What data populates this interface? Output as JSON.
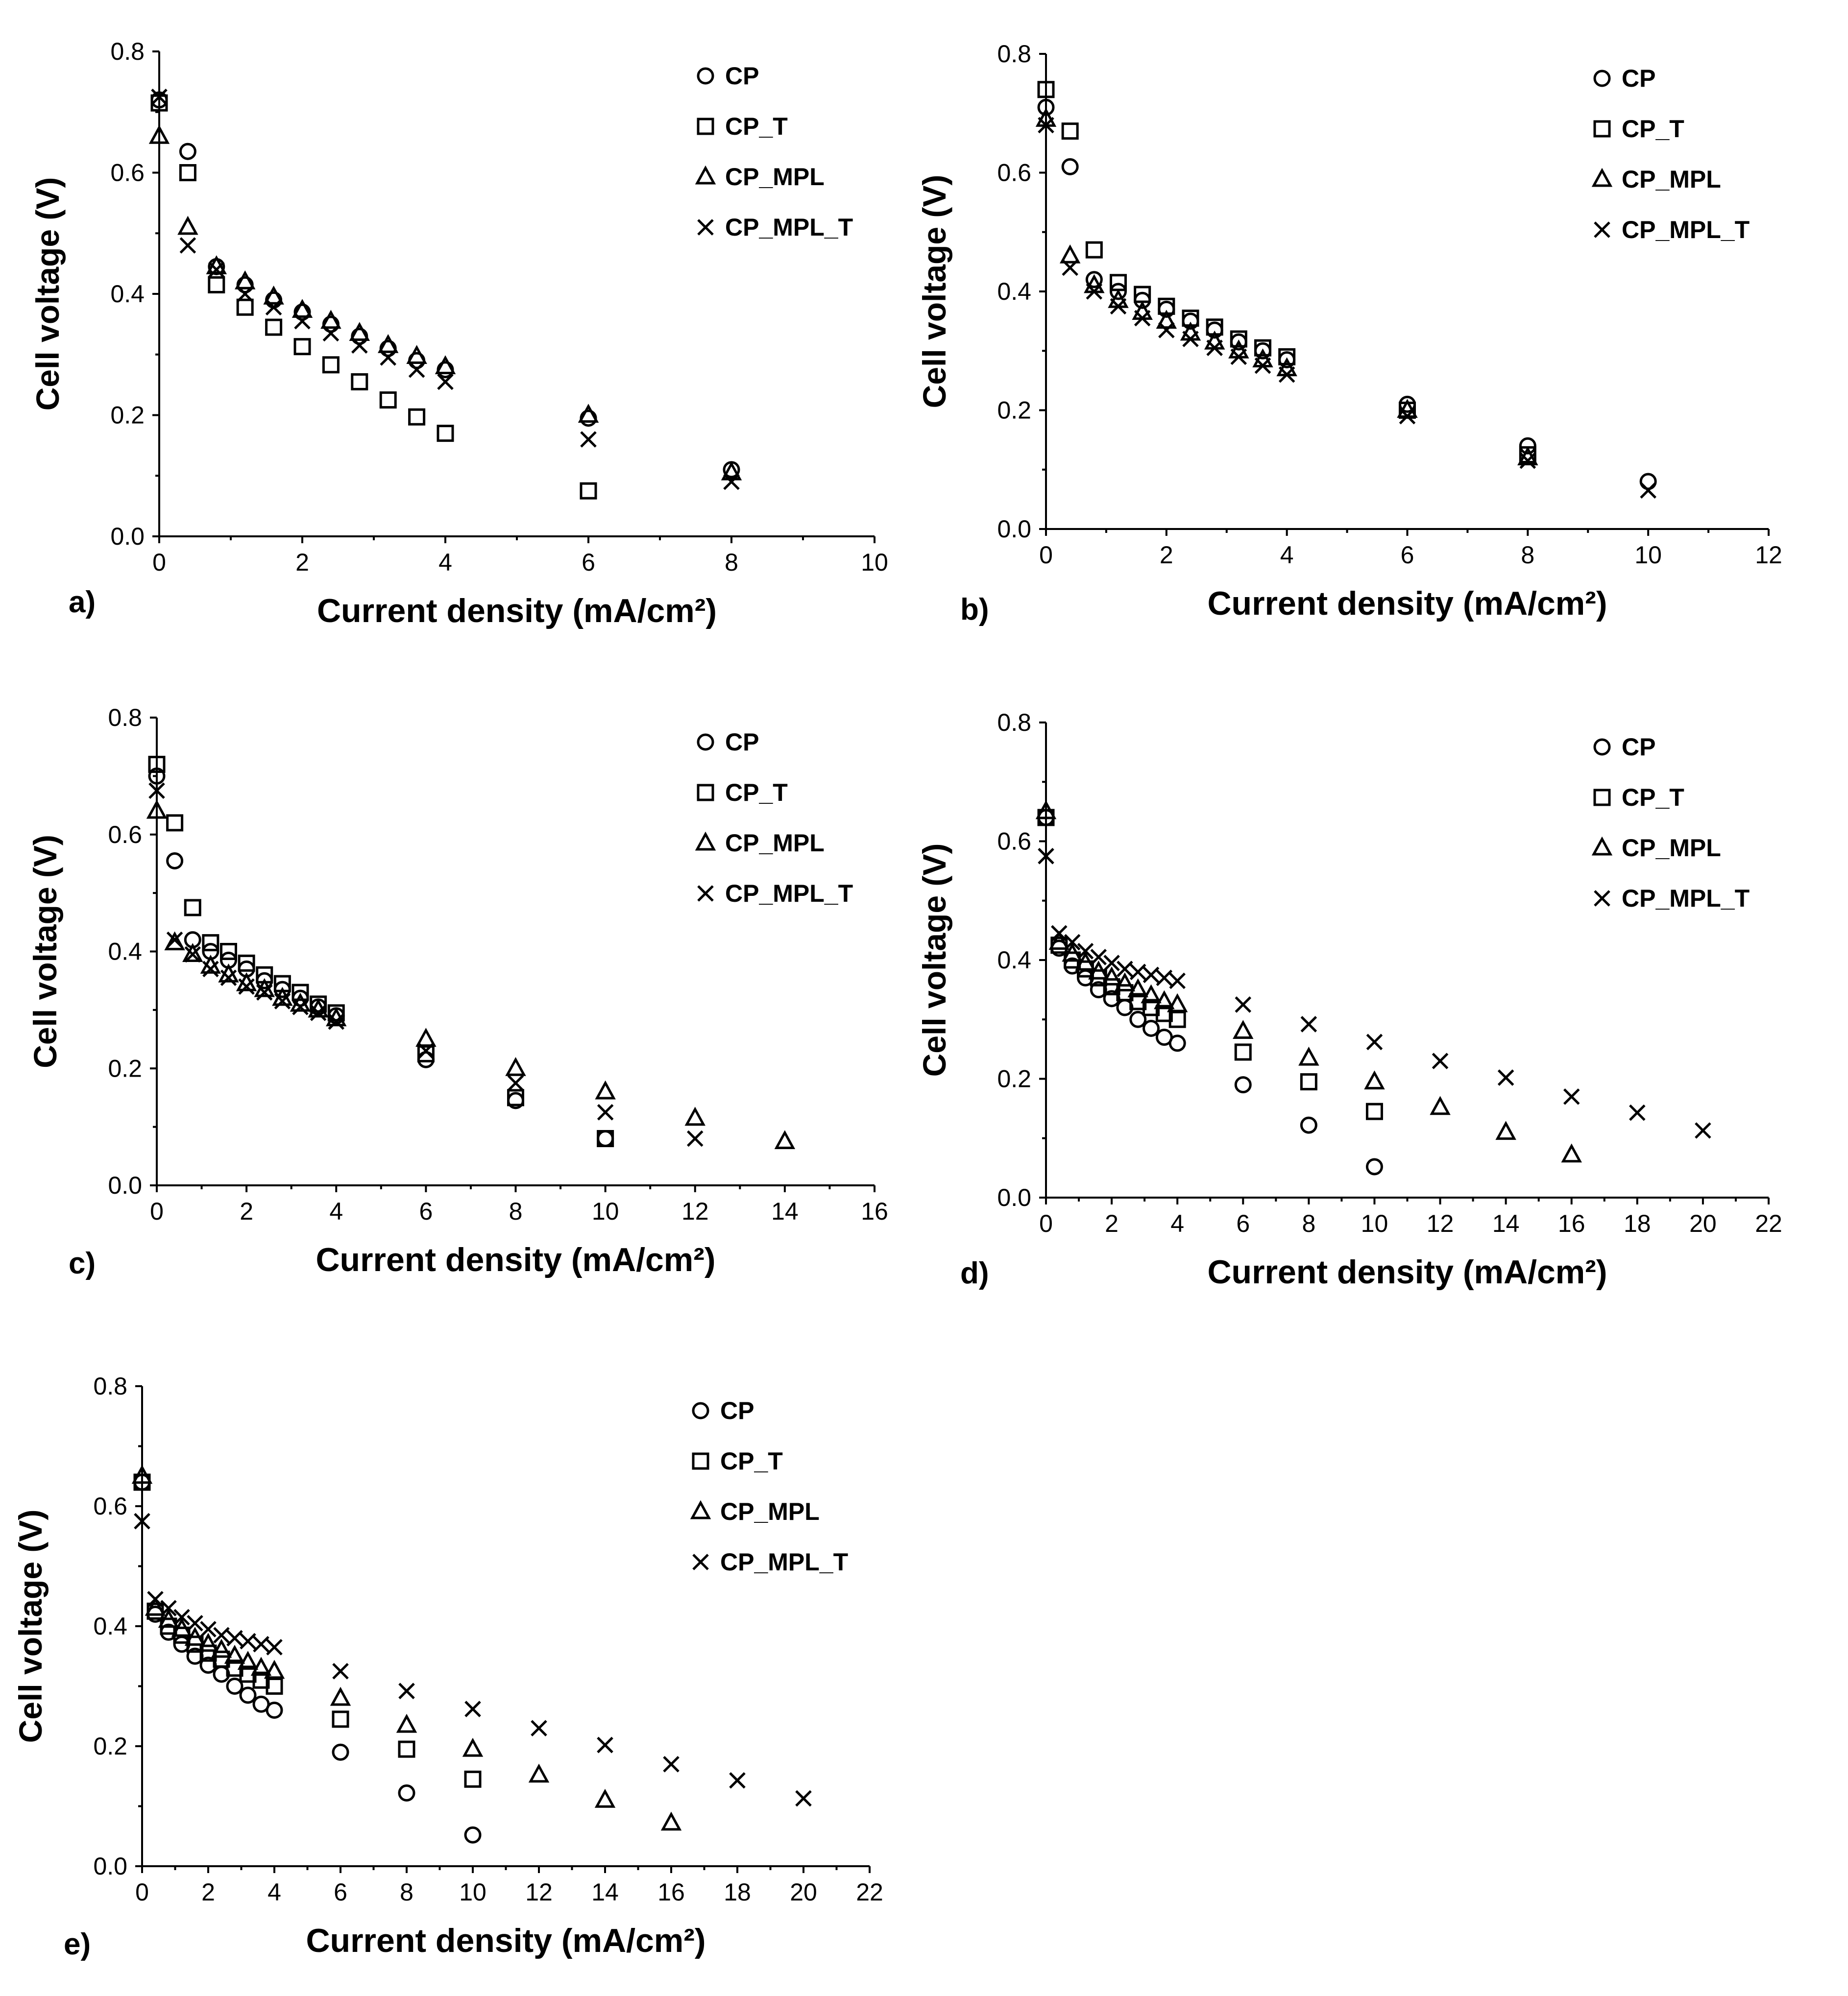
{
  "chart_data": [
    {
      "type": "scatter",
      "panel_label": "a)",
      "xlabel": "Current density (mA/cm²)",
      "ylabel": "Cell voltage (V)",
      "xlim": [
        0,
        10
      ],
      "xticks": [
        0,
        2,
        4,
        6,
        8,
        10
      ],
      "ylim": [
        0,
        0.8
      ],
      "yticks": [
        "0.0",
        "0.2",
        "0.4",
        "0.6",
        "0.8"
      ],
      "legend_position": "top-right",
      "series": [
        {
          "name": "CP",
          "marker": "circle",
          "x": [
            0,
            0.4,
            0.8,
            1.2,
            1.6,
            2.0,
            2.4,
            2.8,
            3.2,
            3.6,
            4.0,
            6,
            8
          ],
          "y": [
            0.72,
            0.635,
            0.445,
            0.415,
            0.39,
            0.37,
            0.35,
            0.33,
            0.31,
            0.29,
            0.275,
            0.195,
            0.11
          ]
        },
        {
          "name": "CP_T",
          "marker": "square",
          "x": [
            0,
            0.4,
            0.8,
            1.2,
            1.6,
            2.0,
            2.4,
            2.8,
            3.2,
            3.6,
            4.0,
            6
          ],
          "y": [
            0.715,
            0.6,
            0.415,
            0.378,
            0.345,
            0.313,
            0.283,
            0.255,
            0.225,
            0.197,
            0.17,
            0.075
          ]
        },
        {
          "name": "CP_MPL",
          "marker": "triangle",
          "x": [
            0,
            0.4,
            0.8,
            1.2,
            1.6,
            2.0,
            2.4,
            2.8,
            3.2,
            3.6,
            4.0,
            6,
            8
          ],
          "y": [
            0.66,
            0.51,
            0.445,
            0.42,
            0.395,
            0.373,
            0.355,
            0.335,
            0.315,
            0.297,
            0.28,
            0.2,
            0.105
          ]
        },
        {
          "name": "CP_MPL_T",
          "marker": "x",
          "x": [
            0,
            0.4,
            0.8,
            1.2,
            1.6,
            2.0,
            2.4,
            2.8,
            3.2,
            3.6,
            4.0,
            6,
            8
          ],
          "y": [
            0.725,
            0.48,
            0.44,
            0.4,
            0.378,
            0.355,
            0.335,
            0.315,
            0.295,
            0.275,
            0.255,
            0.16,
            0.09
          ]
        }
      ]
    },
    {
      "type": "scatter",
      "panel_label": "b)",
      "xlabel": "Current density (mA/cm²)",
      "ylabel": "Cell voltage (V)",
      "xlim": [
        0,
        12
      ],
      "xticks": [
        0,
        2,
        4,
        6,
        8,
        10,
        12
      ],
      "ylim": [
        0,
        0.8
      ],
      "yticks": [
        "0.0",
        "0.2",
        "0.4",
        "0.6",
        "0.8"
      ],
      "legend_position": "top-right",
      "series": [
        {
          "name": "CP",
          "marker": "circle",
          "x": [
            0,
            0.4,
            0.8,
            1.2,
            1.6,
            2.0,
            2.4,
            2.8,
            3.2,
            3.6,
            4.0,
            6,
            8,
            10
          ],
          "y": [
            0.71,
            0.61,
            0.42,
            0.4,
            0.385,
            0.37,
            0.35,
            0.335,
            0.315,
            0.3,
            0.285,
            0.21,
            0.14,
            0.08
          ]
        },
        {
          "name": "CP_T",
          "marker": "square",
          "x": [
            0,
            0.4,
            0.8,
            1.2,
            1.6,
            2.0,
            2.4,
            2.8,
            3.2,
            3.6,
            4.0,
            6,
            8
          ],
          "y": [
            0.74,
            0.67,
            0.47,
            0.415,
            0.395,
            0.375,
            0.355,
            0.34,
            0.32,
            0.305,
            0.29,
            0.2,
            0.125
          ]
        },
        {
          "name": "CP_MPL",
          "marker": "triangle",
          "x": [
            0,
            0.4,
            0.8,
            1.2,
            1.6,
            2.0,
            2.4,
            2.8,
            3.2,
            3.6,
            4.0,
            6,
            8
          ],
          "y": [
            0.69,
            0.46,
            0.41,
            0.385,
            0.365,
            0.35,
            0.33,
            0.315,
            0.3,
            0.285,
            0.27,
            0.2,
            0.12
          ]
        },
        {
          "name": "CP_MPL_T",
          "marker": "x",
          "x": [
            0,
            0.4,
            0.8,
            1.2,
            1.6,
            2.0,
            2.4,
            2.8,
            3.2,
            3.6,
            4.0,
            6,
            8,
            10
          ],
          "y": [
            0.68,
            0.44,
            0.4,
            0.375,
            0.355,
            0.335,
            0.32,
            0.305,
            0.29,
            0.275,
            0.26,
            0.19,
            0.115,
            0.065
          ]
        }
      ]
    },
    {
      "type": "scatter",
      "panel_label": "c)",
      "xlabel": "Current density (mA/cm²)",
      "ylabel": "Cell voltage (V)",
      "xlim": [
        0,
        16
      ],
      "xticks": [
        0,
        2,
        4,
        6,
        8,
        10,
        12,
        14,
        16
      ],
      "ylim": [
        0,
        0.8
      ],
      "yticks": [
        "0.0",
        "0.2",
        "0.4",
        "0.6",
        "0.8"
      ],
      "legend_position": "top-right",
      "series": [
        {
          "name": "CP",
          "marker": "circle",
          "x": [
            0,
            0.4,
            0.8,
            1.2,
            1.6,
            2.0,
            2.4,
            2.8,
            3.2,
            3.6,
            4.0,
            6,
            8,
            10
          ],
          "y": [
            0.7,
            0.555,
            0.42,
            0.4,
            0.385,
            0.37,
            0.35,
            0.335,
            0.32,
            0.305,
            0.29,
            0.215,
            0.145,
            0.08
          ]
        },
        {
          "name": "CP_T",
          "marker": "square",
          "x": [
            0,
            0.4,
            0.8,
            1.2,
            1.6,
            2.0,
            2.4,
            2.8,
            3.2,
            3.6,
            4.0,
            6,
            8,
            10
          ],
          "y": [
            0.72,
            0.62,
            0.475,
            0.415,
            0.4,
            0.38,
            0.36,
            0.345,
            0.33,
            0.31,
            0.295,
            0.225,
            0.15,
            0.08
          ]
        },
        {
          "name": "CP_MPL",
          "marker": "triangle",
          "x": [
            0,
            0.4,
            0.8,
            1.2,
            1.6,
            2.0,
            2.4,
            2.8,
            3.2,
            3.6,
            4.0,
            6,
            8,
            10,
            12,
            14
          ],
          "y": [
            0.64,
            0.415,
            0.395,
            0.375,
            0.36,
            0.345,
            0.335,
            0.32,
            0.31,
            0.3,
            0.285,
            0.25,
            0.2,
            0.16,
            0.115,
            0.075
          ]
        },
        {
          "name": "CP_MPL_T",
          "marker": "x",
          "x": [
            0,
            0.4,
            0.8,
            1.2,
            1.6,
            2.0,
            2.4,
            2.8,
            3.2,
            3.6,
            4.0,
            6,
            8,
            10,
            12
          ],
          "y": [
            0.675,
            0.42,
            0.395,
            0.37,
            0.355,
            0.34,
            0.33,
            0.315,
            0.305,
            0.295,
            0.28,
            0.23,
            0.175,
            0.125,
            0.08
          ]
        }
      ]
    },
    {
      "type": "scatter",
      "panel_label": "d)",
      "xlabel": "Current density (mA/cm²)",
      "ylabel": "Cell voltage (V)",
      "xlim": [
        0,
        22
      ],
      "xticks": [
        0,
        2,
        4,
        6,
        8,
        10,
        12,
        14,
        16,
        18,
        20,
        22
      ],
      "ylim": [
        0,
        0.8
      ],
      "yticks": [
        "0.0",
        "0.2",
        "0.4",
        "0.6",
        "0.8"
      ],
      "legend_position": "top-right",
      "series": [
        {
          "name": "CP",
          "marker": "circle",
          "x": [
            0,
            0.4,
            0.8,
            1.2,
            1.6,
            2.0,
            2.4,
            2.8,
            3.2,
            3.6,
            4.0,
            6,
            8,
            10
          ],
          "y": [
            0.64,
            0.42,
            0.39,
            0.37,
            0.35,
            0.335,
            0.32,
            0.3,
            0.285,
            0.27,
            0.26,
            0.19,
            0.122,
            0.052
          ]
        },
        {
          "name": "CP_T",
          "marker": "square",
          "x": [
            0,
            0.4,
            0.8,
            1.2,
            1.6,
            2.0,
            2.4,
            2.8,
            3.2,
            3.6,
            4.0,
            6,
            8,
            10
          ],
          "y": [
            0.64,
            0.425,
            0.4,
            0.385,
            0.37,
            0.355,
            0.345,
            0.33,
            0.32,
            0.31,
            0.3,
            0.245,
            0.195,
            0.145
          ]
        },
        {
          "name": "CP_MPL",
          "marker": "triangle",
          "x": [
            0,
            0.4,
            0.8,
            1.2,
            1.6,
            2.0,
            2.4,
            2.8,
            3.2,
            3.6,
            4.0,
            6,
            8,
            10,
            12,
            14,
            16
          ],
          "y": [
            0.65,
            0.43,
            0.41,
            0.395,
            0.38,
            0.37,
            0.36,
            0.35,
            0.34,
            0.33,
            0.325,
            0.28,
            0.235,
            0.195,
            0.152,
            0.11,
            0.072
          ]
        },
        {
          "name": "CP_MPL_T",
          "marker": "x",
          "x": [
            0,
            0.4,
            0.8,
            1.2,
            1.6,
            2.0,
            2.4,
            2.8,
            3.2,
            3.6,
            4.0,
            6,
            8,
            10,
            12,
            14,
            16,
            18,
            20
          ],
          "y": [
            0.575,
            0.445,
            0.43,
            0.415,
            0.405,
            0.395,
            0.385,
            0.38,
            0.375,
            0.37,
            0.365,
            0.325,
            0.292,
            0.262,
            0.23,
            0.202,
            0.17,
            0.143,
            0.113
          ]
        }
      ]
    },
    {
      "type": "scatter",
      "panel_label": "e)",
      "xlabel": "Current density (mA/cm²)",
      "ylabel": "Cell voltage (V)",
      "xlim": [
        0,
        22
      ],
      "xticks": [
        0,
        2,
        4,
        6,
        8,
        10,
        12,
        14,
        16,
        18,
        20,
        22
      ],
      "ylim": [
        0,
        0.8
      ],
      "yticks": [
        "0.0",
        "0.2",
        "0.4",
        "0.6",
        "0.8"
      ],
      "legend_position": "top-right",
      "series": [
        {
          "name": "CP",
          "marker": "circle",
          "x": [
            0,
            0.4,
            0.8,
            1.2,
            1.6,
            2.0,
            2.4,
            2.8,
            3.2,
            3.6,
            4.0,
            6,
            8,
            10
          ],
          "y": [
            0.64,
            0.42,
            0.39,
            0.37,
            0.35,
            0.335,
            0.32,
            0.3,
            0.285,
            0.27,
            0.26,
            0.19,
            0.122,
            0.052
          ]
        },
        {
          "name": "CP_T",
          "marker": "square",
          "x": [
            0,
            0.4,
            0.8,
            1.2,
            1.6,
            2.0,
            2.4,
            2.8,
            3.2,
            3.6,
            4.0,
            6,
            8,
            10
          ],
          "y": [
            0.64,
            0.425,
            0.4,
            0.385,
            0.37,
            0.355,
            0.345,
            0.33,
            0.32,
            0.31,
            0.3,
            0.245,
            0.195,
            0.145
          ]
        },
        {
          "name": "CP_MPL",
          "marker": "triangle",
          "x": [
            0,
            0.4,
            0.8,
            1.2,
            1.6,
            2.0,
            2.4,
            2.8,
            3.2,
            3.6,
            4.0,
            6,
            8,
            10,
            12,
            14,
            16
          ],
          "y": [
            0.65,
            0.43,
            0.41,
            0.395,
            0.38,
            0.37,
            0.36,
            0.35,
            0.34,
            0.33,
            0.325,
            0.28,
            0.235,
            0.195,
            0.152,
            0.11,
            0.072
          ]
        },
        {
          "name": "CP_MPL_T",
          "marker": "x",
          "x": [
            0,
            0.4,
            0.8,
            1.2,
            1.6,
            2.0,
            2.4,
            2.8,
            3.2,
            3.6,
            4.0,
            6,
            8,
            10,
            12,
            14,
            16,
            18,
            20
          ],
          "y": [
            0.575,
            0.445,
            0.43,
            0.415,
            0.405,
            0.395,
            0.385,
            0.38,
            0.375,
            0.37,
            0.365,
            0.325,
            0.292,
            0.262,
            0.23,
            0.202,
            0.17,
            0.143,
            0.113
          ]
        }
      ]
    }
  ]
}
